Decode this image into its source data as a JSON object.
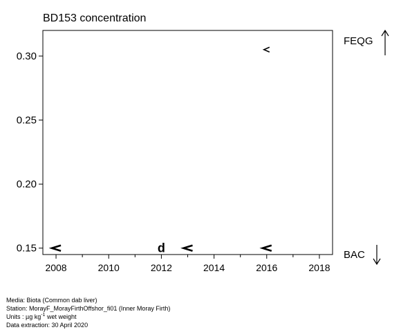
{
  "chart_data": {
    "type": "scatter",
    "title": "BD153 concentration",
    "xlabel": "",
    "ylabel": "",
    "xlim": [
      2007.5,
      2018.5
    ],
    "ylim": [
      0.145,
      0.32
    ],
    "x_ticks": [
      2008,
      2010,
      2012,
      2014,
      2016,
      2018
    ],
    "x_minor_ticks": [
      2009,
      2011,
      2013,
      2015,
      2017
    ],
    "y_ticks": [
      0.15,
      0.2,
      0.25,
      0.3
    ],
    "y_tick_labels": [
      "0.15",
      "0.20",
      "0.25",
      "0.30"
    ],
    "x_tick_labels": [
      "2008",
      "2010",
      "2012",
      "2014",
      "2016",
      "2018"
    ],
    "grid": false,
    "points": [
      {
        "x": 2008,
        "y": 0.15,
        "marker": "<<"
      },
      {
        "x": 2012,
        "y": 0.15,
        "marker": "d"
      },
      {
        "x": 2013,
        "y": 0.15,
        "marker": "<<"
      },
      {
        "x": 2016,
        "y": 0.15,
        "marker": "<<"
      },
      {
        "x": 2016,
        "y": 0.305,
        "marker": "<"
      }
    ],
    "reference_labels": {
      "upper": {
        "label": "FEQG",
        "arrow": "up"
      },
      "lower": {
        "label": "BAC",
        "arrow": "down"
      }
    }
  },
  "footer": {
    "media": "Media: Biota (Common dab liver)",
    "station": "Station: MorayF_MorayFirthOffshor_fi01 (Inner Moray Firth)",
    "units_prefix": "Units :  µg kg",
    "units_sup": "-1",
    "units_suffix": " wet weight",
    "extraction": "Data extraction: 30 April 2020"
  }
}
